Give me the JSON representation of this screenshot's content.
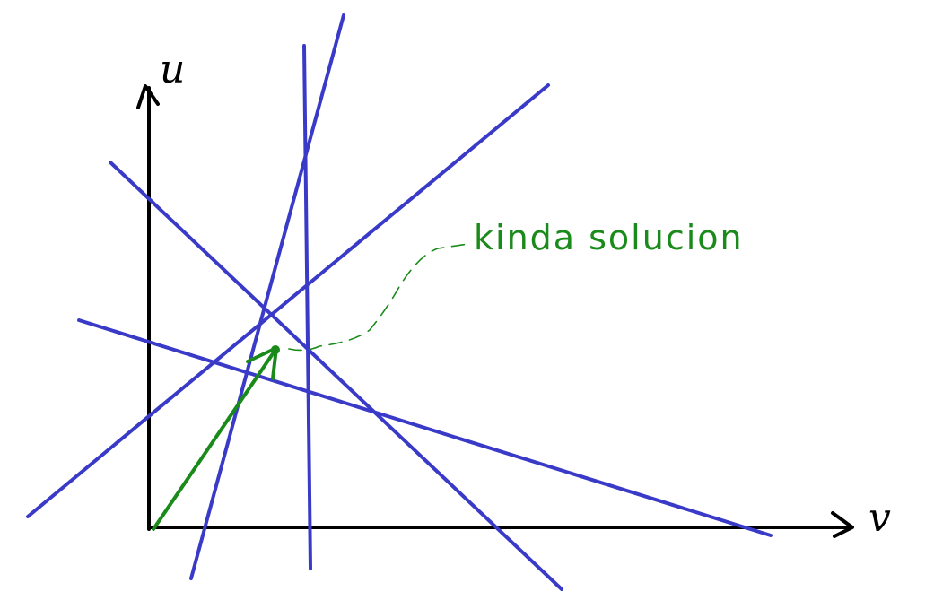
{
  "axes": {
    "vertical_label": "u",
    "horizontal_label": "v",
    "color": "#000000"
  },
  "annotation": {
    "text": "kinda solucion",
    "color": "#1a8a1a"
  },
  "colors": {
    "constraint_lines": "#3a3ac8",
    "solution_vector": "#1a8a1a"
  }
}
